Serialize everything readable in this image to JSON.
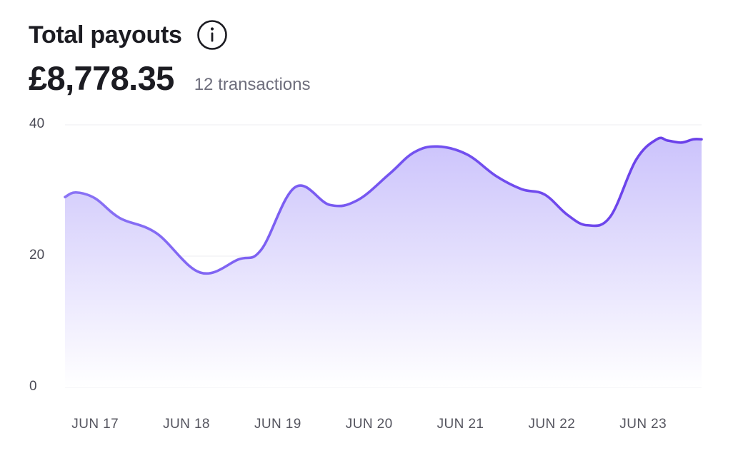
{
  "header": {
    "title": "Total payouts",
    "info_icon": "info-icon",
    "total": "£8,778.35",
    "transactions": "12 transactions"
  },
  "colors": {
    "line": "#7352f0",
    "line_light": "#8a73f5",
    "fill_top": "#c9c0fb",
    "grid": "#ededf2"
  },
  "chart_data": {
    "type": "area",
    "title": "",
    "xlabel": "",
    "ylabel": "",
    "ylim": [
      0,
      40
    ],
    "y_ticks": [
      0,
      20,
      40
    ],
    "grid": "horizontal",
    "x_ticks": [
      {
        "x": 0.33,
        "label": "JUN 17"
      },
      {
        "x": 1.33,
        "label": "JUN 18"
      },
      {
        "x": 2.33,
        "label": "JUN 19"
      },
      {
        "x": 3.33,
        "label": "JUN 20"
      },
      {
        "x": 4.33,
        "label": "JUN 21"
      },
      {
        "x": 5.33,
        "label": "JUN 22"
      },
      {
        "x": 6.33,
        "label": "JUN 23"
      }
    ],
    "series": [
      {
        "x": [
          0,
          0.12,
          0.33,
          0.6,
          1.0,
          1.48,
          1.9,
          2.15,
          2.52,
          2.9,
          3.2,
          3.55,
          3.82,
          4.08,
          4.4,
          4.72,
          5.0,
          5.25,
          5.5,
          5.72,
          5.97,
          6.25,
          6.48,
          6.6,
          6.75,
          6.88,
          6.97
        ],
        "values": [
          29,
          29.7,
          28.8,
          25.8,
          23.5,
          17.5,
          19.5,
          21,
          30.5,
          27.8,
          28.5,
          32.5,
          35.8,
          36.7,
          35.5,
          32.2,
          30.2,
          29.4,
          26.3,
          24.7,
          26,
          34.6,
          37.8,
          37.6,
          37.3,
          37.8,
          37.8
        ]
      }
    ]
  }
}
